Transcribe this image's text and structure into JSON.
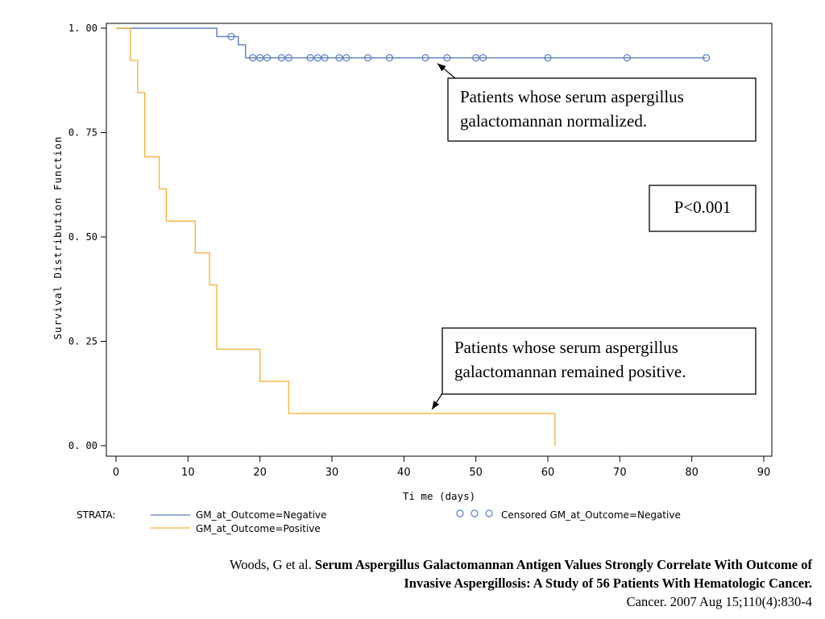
{
  "chart_data": {
    "type": "line",
    "xlabel": "Ti me (days)",
    "ylabel": "Survival Distribution Function",
    "xlim": [
      0,
      90
    ],
    "ylim": [
      0,
      1
    ],
    "x_ticks": [
      0,
      10,
      20,
      30,
      40,
      50,
      60,
      70,
      80,
      90
    ],
    "x_tick_labels": [
      "0",
      "10",
      "20",
      "30",
      "40",
      "50",
      "60",
      "70",
      "80",
      "90"
    ],
    "y_ticks": [
      0,
      0.25,
      0.5,
      0.75,
      1.0
    ],
    "y_tick_labels": [
      "0. 00",
      "0. 25",
      "0. 50",
      "0. 75",
      "1. 00"
    ],
    "grid": false,
    "legend_title": "STRATA:",
    "series": [
      {
        "name": "GM_at_Outcome=Negative",
        "color": "#5b7fc4",
        "step_points": [
          [
            0,
            1.0
          ],
          [
            14,
            1.0
          ],
          [
            14,
            0.98
          ],
          [
            17,
            0.98
          ],
          [
            17,
            0.96
          ],
          [
            18,
            0.96
          ],
          [
            18,
            0.929
          ],
          [
            82,
            0.929
          ]
        ],
        "censored": [
          [
            16,
            0.98
          ],
          [
            19,
            0.929
          ],
          [
            20,
            0.929
          ],
          [
            21,
            0.929
          ],
          [
            23,
            0.929
          ],
          [
            24,
            0.929
          ],
          [
            27,
            0.929
          ],
          [
            28,
            0.929
          ],
          [
            29,
            0.929
          ],
          [
            31,
            0.929
          ],
          [
            32,
            0.929
          ],
          [
            35,
            0.929
          ],
          [
            38,
            0.929
          ],
          [
            43,
            0.929
          ],
          [
            46,
            0.929
          ],
          [
            50,
            0.929
          ],
          [
            51,
            0.929
          ],
          [
            60,
            0.929
          ],
          [
            71,
            0.929
          ],
          [
            82,
            0.929
          ]
        ]
      },
      {
        "name": "GM_at_Outcome=Positive",
        "color": "#f5b53d",
        "step_points": [
          [
            0,
            1.0
          ],
          [
            2,
            1.0
          ],
          [
            2,
            0.923
          ],
          [
            3,
            0.923
          ],
          [
            3,
            0.846
          ],
          [
            4,
            0.846
          ],
          [
            4,
            0.692
          ],
          [
            6,
            0.692
          ],
          [
            6,
            0.615
          ],
          [
            7,
            0.615
          ],
          [
            7,
            0.538
          ],
          [
            11,
            0.538
          ],
          [
            11,
            0.462
          ],
          [
            13,
            0.462
          ],
          [
            13,
            0.385
          ],
          [
            14,
            0.385
          ],
          [
            14,
            0.231
          ],
          [
            20,
            0.231
          ],
          [
            20,
            0.154
          ],
          [
            24,
            0.154
          ],
          [
            24,
            0.077
          ],
          [
            61,
            0.077
          ],
          [
            61,
            0.0
          ]
        ]
      }
    ],
    "censored_legend_label": "Censored GM_at_Outcome=Negative",
    "annotations": [
      {
        "text_lines": [
          "Patients whose serum aspergillus",
          "galactomannan normalized."
        ],
        "arrow_to": [
          44,
          0.929
        ]
      },
      {
        "text_lines": [
          "P<0.001"
        ]
      },
      {
        "text_lines": [
          "Patients whose serum aspergillus",
          "galactomannan remained positive."
        ],
        "arrow_to": [
          43,
          0.077
        ]
      }
    ]
  },
  "citation": {
    "authors": "Woods, G et al.",
    "title_line1": "Serum Aspergillus Galactomannan Antigen Values Strongly Correlate With Outcome of",
    "title_line2": "Invasive Aspergillosis: A Study of 56 Patients With Hematologic Cancer.",
    "source": "Cancer. 2007 Aug 15;110(4):830-4"
  }
}
